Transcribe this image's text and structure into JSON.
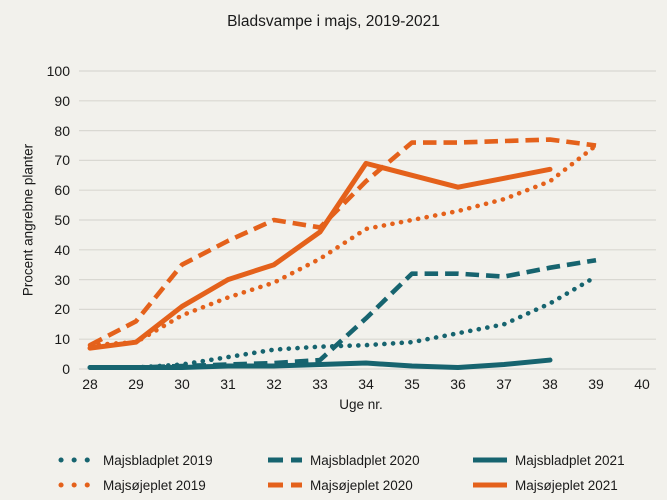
{
  "title": "Bladsvampe i majs, 2019-2021",
  "colors": {
    "teal": "#17646F",
    "orange": "#E4611B",
    "background": "#F2F1EC",
    "grid": "#D9D8D2",
    "text": "#1A1A1A"
  },
  "chart_data": {
    "type": "line",
    "title": "Bladsvampe i majs, 2019-2021",
    "xlabel": "Uge nr.",
    "ylabel": "Procent angrebne planter",
    "x": [
      28,
      29,
      30,
      31,
      32,
      33,
      34,
      35,
      36,
      37,
      38,
      39
    ],
    "xticks": [
      28,
      29,
      30,
      31,
      32,
      33,
      34,
      35,
      36,
      37,
      38,
      39,
      40
    ],
    "yticks": [
      0,
      10,
      20,
      30,
      40,
      50,
      60,
      70,
      80,
      90,
      100
    ],
    "xlim": [
      28,
      40
    ],
    "ylim": [
      0,
      100
    ],
    "grid": "horizontal",
    "legend_position": "bottom",
    "series": [
      {
        "name": "Majsbladplet 2019",
        "color_key": "teal",
        "style": "dotted",
        "values": [
          0.5,
          0.5,
          1.5,
          4,
          6.5,
          7.5,
          8,
          9,
          12,
          15,
          22,
          31
        ]
      },
      {
        "name": "Majsbladplet 2020",
        "color_key": "teal",
        "style": "dashed",
        "values": [
          0.5,
          0.5,
          1,
          1.5,
          2,
          3,
          17,
          32,
          32,
          31,
          34,
          36.5
        ]
      },
      {
        "name": "Majsbladplet 2021",
        "color_key": "teal",
        "style": "solid",
        "values": [
          0.5,
          0.5,
          0.5,
          1,
          1,
          1.5,
          2,
          1,
          0.5,
          1.5,
          3,
          null
        ]
      },
      {
        "name": "Majsøjeplet 2019",
        "color_key": "orange",
        "style": "dotted",
        "values": [
          8,
          9,
          18,
          24,
          29,
          37,
          47,
          50,
          53,
          57,
          63,
          75
        ]
      },
      {
        "name": "Majsøjeplet 2020",
        "color_key": "orange",
        "style": "dashed",
        "values": [
          8,
          16,
          35,
          43,
          50,
          47.5,
          63,
          76,
          76,
          76.5,
          77,
          75
        ]
      },
      {
        "name": "Majsøjeplet 2021",
        "color_key": "orange",
        "style": "solid",
        "values": [
          7,
          9,
          21,
          30,
          35,
          46,
          69,
          65,
          61,
          64,
          67,
          null
        ]
      }
    ]
  }
}
